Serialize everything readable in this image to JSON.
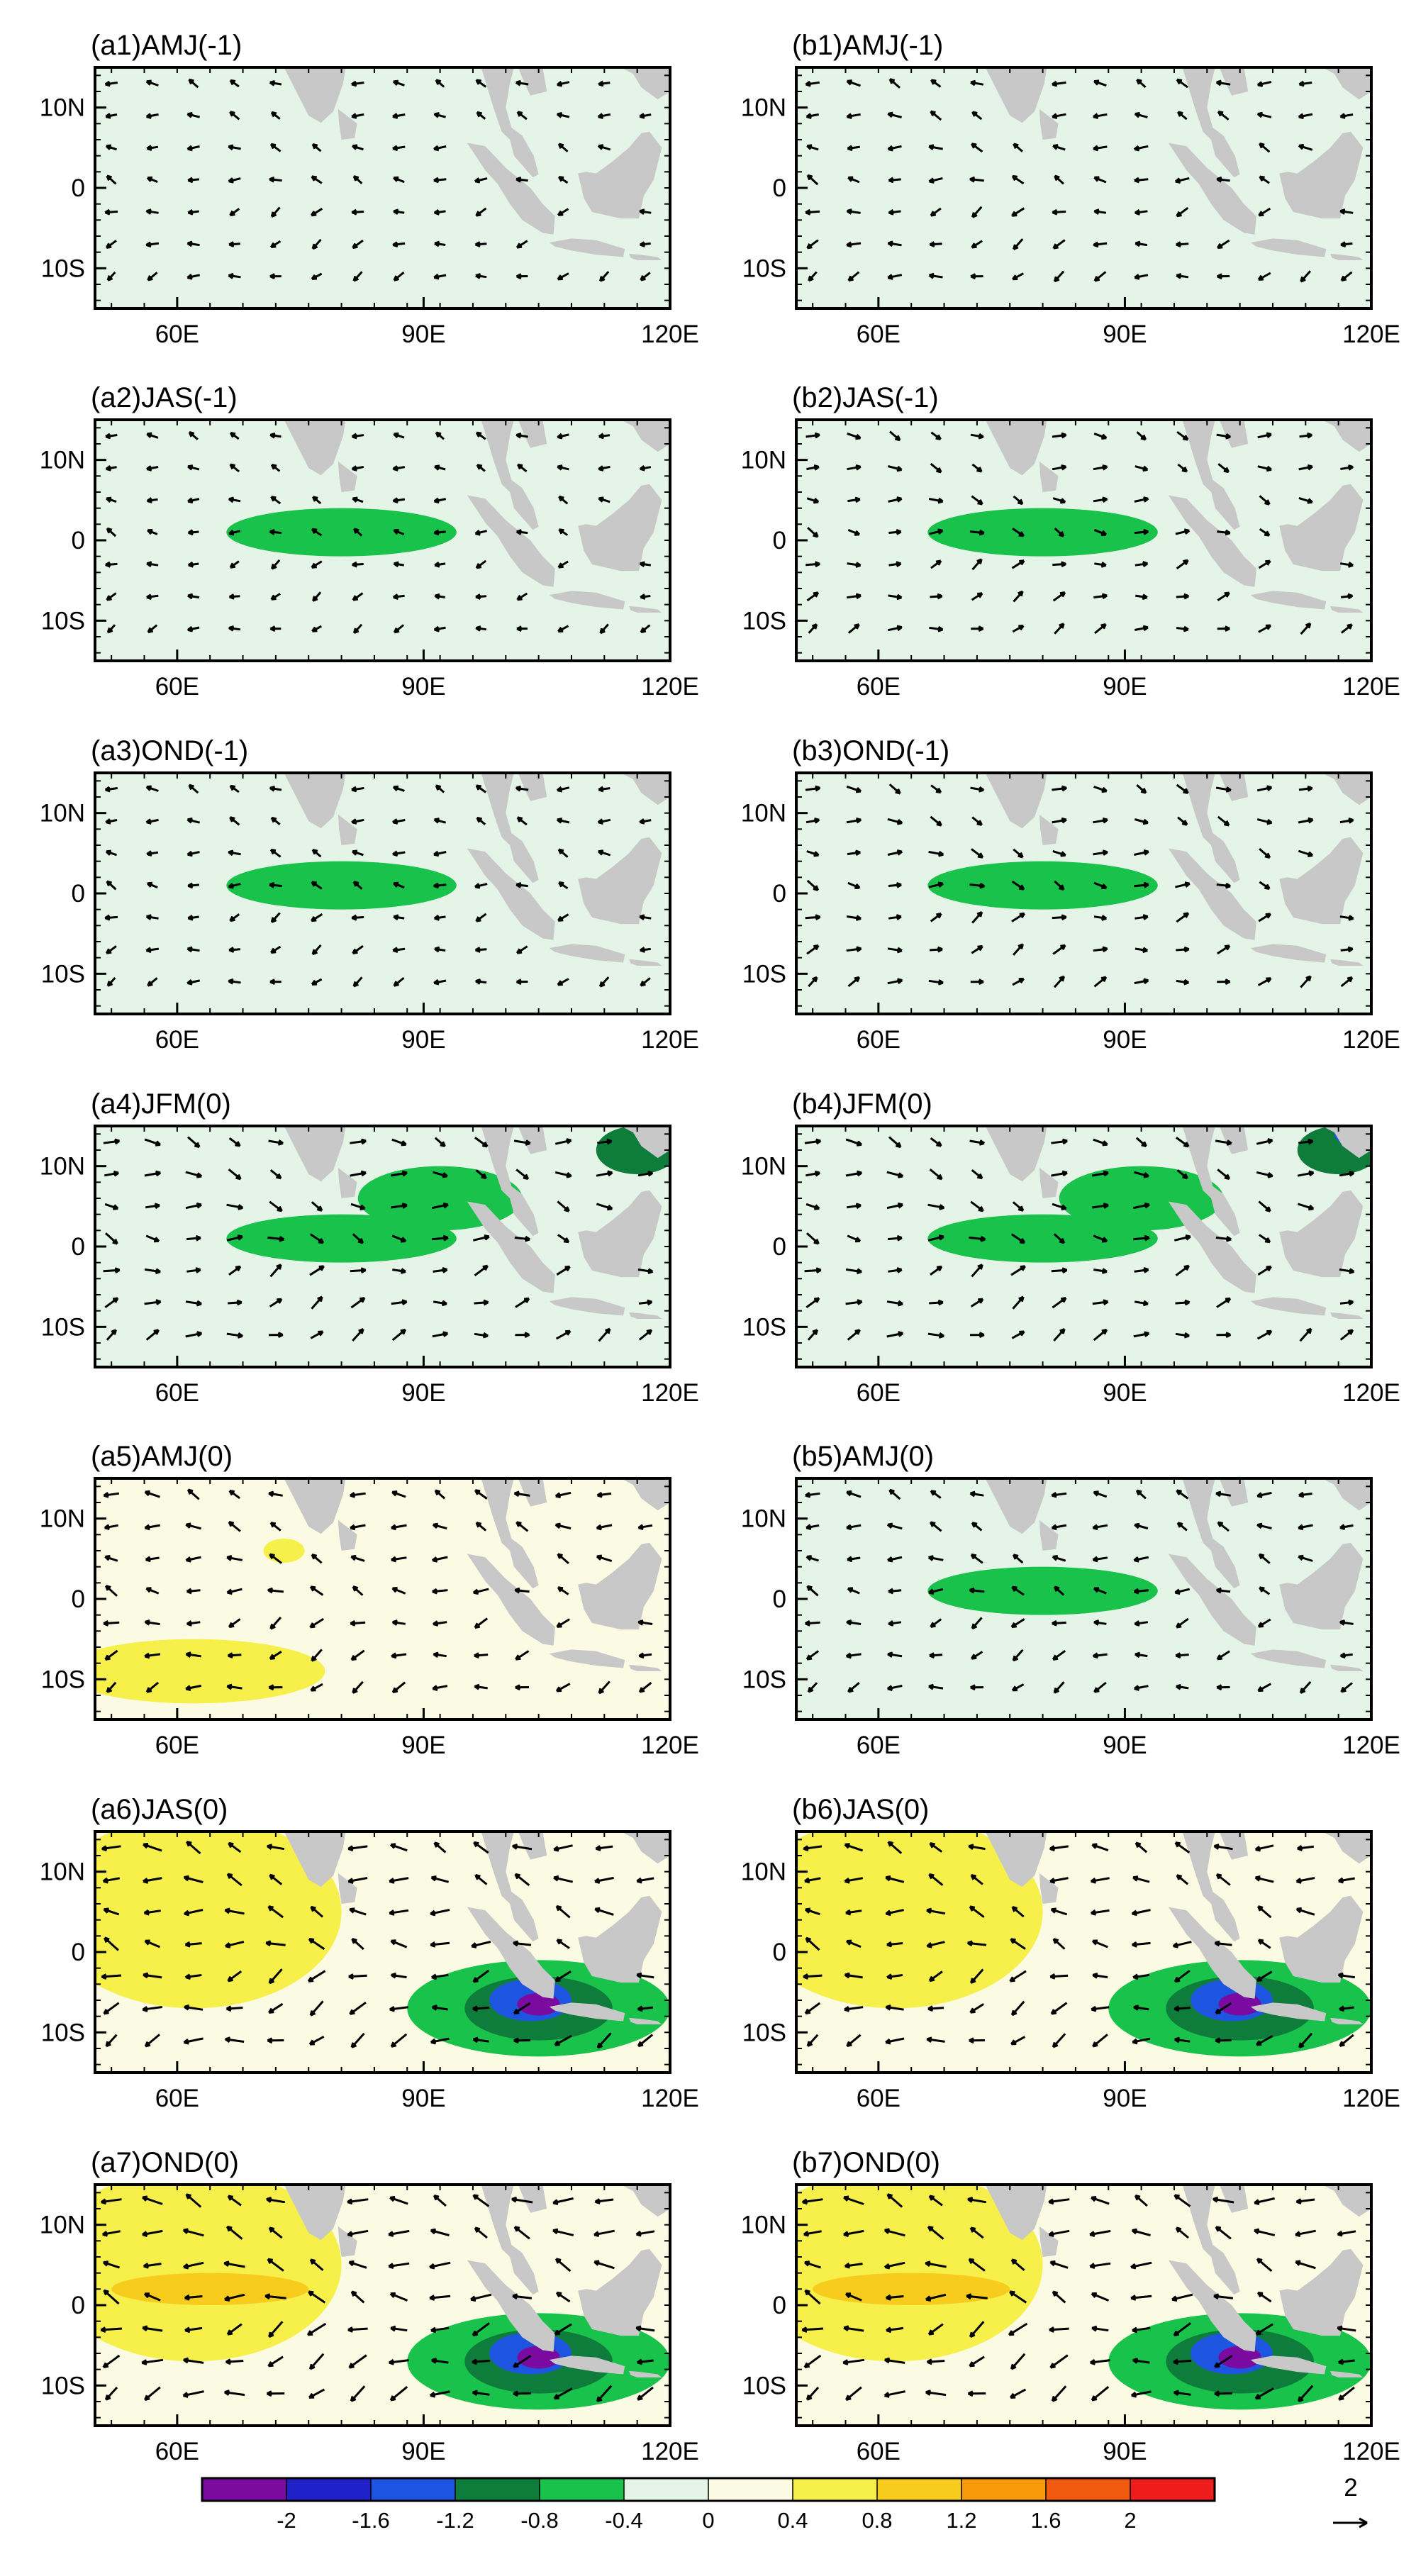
{
  "chart_data": {
    "type": "heatmap",
    "description_layout": "7 rows x 2 columns of map panels: shaded anomaly field with overlaid wind-vector arrows",
    "x_axis": {
      "range_deg_east": [
        50,
        120
      ],
      "ticks": [
        "60E",
        "90E",
        "120E"
      ],
      "tick_values": [
        60,
        90,
        120
      ]
    },
    "y_axis": {
      "range_deg_north": [
        -15,
        15
      ],
      "ticks": [
        "10N",
        "0",
        "10S"
      ],
      "tick_values": [
        10,
        0,
        -10
      ]
    },
    "panels": [
      {
        "id": "a1",
        "title": "(a1)AMJ(-1)",
        "signal": 0.0,
        "wind_strength": 0.35,
        "wind_dir": "weak easterly"
      },
      {
        "id": "b1",
        "title": "(b1)AMJ(-1)",
        "signal": 0.0,
        "wind_strength": 0.45,
        "wind_dir": "southeasterly"
      },
      {
        "id": "a2",
        "title": "(a2)JAS(-1)",
        "signal": -0.1,
        "wind_strength": 0.3,
        "wind_dir": "weak"
      },
      {
        "id": "b2",
        "title": "(b2)JAS(-1)",
        "signal": -0.15,
        "wind_strength": 0.45,
        "wind_dir": "westerly north"
      },
      {
        "id": "a3",
        "title": "(a3)OND(-1)",
        "signal": -0.1,
        "wind_strength": 0.35,
        "wind_dir": "weak"
      },
      {
        "id": "b3",
        "title": "(b3)OND(-1)",
        "signal": -0.2,
        "wind_strength": 0.5,
        "wind_dir": "westerly"
      },
      {
        "id": "a4",
        "title": "(a4)JFM(0)",
        "signal": -0.5,
        "wind_strength": 0.6,
        "wind_dir": "westerly"
      },
      {
        "id": "b4",
        "title": "(b4)JFM(0)",
        "signal": -0.7,
        "wind_strength": 0.6,
        "wind_dir": "westerly"
      },
      {
        "id": "a5",
        "title": "(a5)AMJ(0)",
        "signal": 0.5,
        "wind_strength": 0.55,
        "wind_dir": "convergent"
      },
      {
        "id": "b5",
        "title": "(b5)AMJ(0)",
        "signal": -0.2,
        "wind_strength": 0.5,
        "wind_dir": "easterly"
      },
      {
        "id": "a6",
        "title": "(a6)JAS(0)",
        "signal": 1.0,
        "wind_strength": 0.8,
        "wind_dir": "southeasterly"
      },
      {
        "id": "b6",
        "title": "(b6)JAS(0)",
        "signal": 0.9,
        "wind_strength": 0.75,
        "wind_dir": "southeasterly"
      },
      {
        "id": "a7",
        "title": "(a7)OND(0)",
        "signal": 1.0,
        "wind_strength": 0.9,
        "wind_dir": "easterly"
      },
      {
        "id": "b7",
        "title": "(b7)OND(0)",
        "signal": 1.0,
        "wind_strength": 0.9,
        "wind_dir": "easterly"
      }
    ],
    "colorbar": {
      "labels": [
        "-2",
        "-1.6",
        "-1.2",
        "-0.8",
        "-0.4",
        "0",
        "0.4",
        "0.8",
        "1.2",
        "1.6",
        "2"
      ],
      "colors": [
        "#7a0aa0",
        "#2020c8",
        "#1e55e0",
        "#0e7c3a",
        "#19c24a",
        "#e4f5e8",
        "#fbfbe4",
        "#f7f04a",
        "#f7cc1c",
        "#f79a0c",
        "#f25a10",
        "#ee1c1c"
      ]
    },
    "reference_vector": {
      "label": "2"
    },
    "colors": {
      "land": "#c8c8c8",
      "ocean_neutral_pos": "#fbfbe4",
      "ocean_neutral_neg": "#e4f5e8",
      "yellow": "#f7f04a",
      "orange": "#f7cc1c",
      "green_light": "#19c24a",
      "green_dark": "#0e7c3a",
      "blue": "#1e55e0",
      "purple": "#7a0aa0"
    }
  }
}
